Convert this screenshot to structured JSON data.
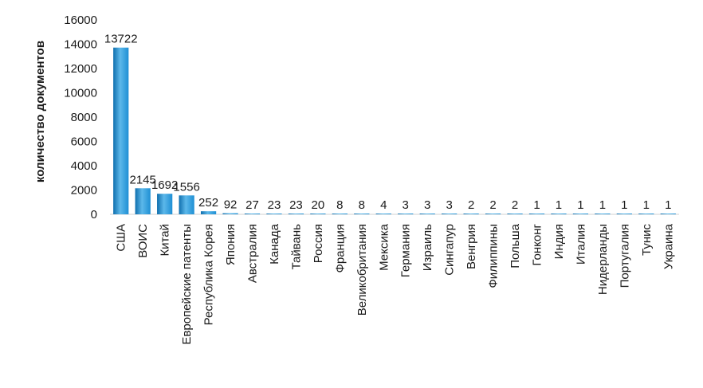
{
  "chart_data": {
    "type": "bar",
    "title": "",
    "xlabel": "",
    "ylabel": "количество документов",
    "ylim": [
      0,
      16000
    ],
    "yticks": [
      0,
      2000,
      4000,
      6000,
      8000,
      10000,
      12000,
      14000,
      16000
    ],
    "grid": false,
    "legend": "none",
    "colors": {
      "bar": "#1e8fd4",
      "bar_dark": "#0f6fae",
      "bar_light": "#5cb8ea"
    },
    "categories": [
      "США",
      "ВОИС",
      "Китай",
      "Европейские патенты",
      "Республика Корея",
      "Япония",
      "Австралия",
      "Канада",
      "Тайвань",
      "Россия",
      "Франция",
      "Великобритания",
      "Мексика",
      "Германия",
      "Израиль",
      "Сингапур",
      "Венгрия",
      "Филиппины",
      "Польша",
      "Гонконг",
      "Индия",
      "Италия",
      "Нидерланды",
      "Португалия",
      "Тунис",
      "Украина"
    ],
    "values": [
      13722,
      2145,
      1692,
      1556,
      252,
      92,
      27,
      23,
      23,
      20,
      8,
      8,
      4,
      3,
      3,
      3,
      2,
      2,
      2,
      1,
      1,
      1,
      1,
      1,
      1,
      1
    ]
  }
}
